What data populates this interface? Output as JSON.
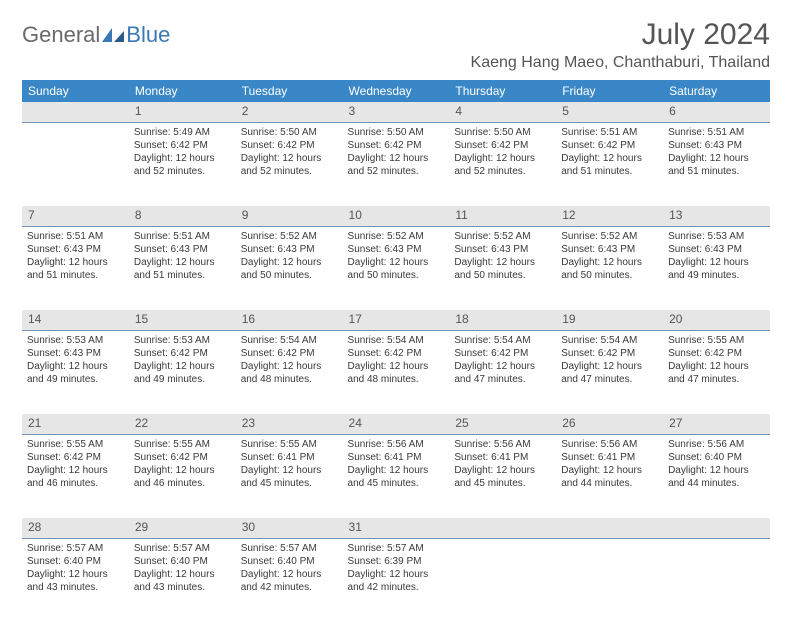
{
  "brand": {
    "part1": "General",
    "part2": "Blue"
  },
  "title": "July 2024",
  "location": "Kaeng Hang Maeo, Chanthaburi, Thailand",
  "colors": {
    "header_bg": "#3a87c7",
    "header_text": "#ffffff",
    "daynum_bg": "#e6e6e6",
    "daynum_border": "#6f93b8",
    "body_text": "#3a3a3a",
    "brand_gray": "#6a6a6a",
    "brand_blue": "#3a78b5"
  },
  "weekdays": [
    "Sunday",
    "Monday",
    "Tuesday",
    "Wednesday",
    "Thursday",
    "Friday",
    "Saturday"
  ],
  "weeks": [
    [
      null,
      {
        "n": "1",
        "sr": "5:49 AM",
        "ss": "6:42 PM",
        "dl": "12 hours and 52 minutes."
      },
      {
        "n": "2",
        "sr": "5:50 AM",
        "ss": "6:42 PM",
        "dl": "12 hours and 52 minutes."
      },
      {
        "n": "3",
        "sr": "5:50 AM",
        "ss": "6:42 PM",
        "dl": "12 hours and 52 minutes."
      },
      {
        "n": "4",
        "sr": "5:50 AM",
        "ss": "6:42 PM",
        "dl": "12 hours and 52 minutes."
      },
      {
        "n": "5",
        "sr": "5:51 AM",
        "ss": "6:42 PM",
        "dl": "12 hours and 51 minutes."
      },
      {
        "n": "6",
        "sr": "5:51 AM",
        "ss": "6:43 PM",
        "dl": "12 hours and 51 minutes."
      }
    ],
    [
      {
        "n": "7",
        "sr": "5:51 AM",
        "ss": "6:43 PM",
        "dl": "12 hours and 51 minutes."
      },
      {
        "n": "8",
        "sr": "5:51 AM",
        "ss": "6:43 PM",
        "dl": "12 hours and 51 minutes."
      },
      {
        "n": "9",
        "sr": "5:52 AM",
        "ss": "6:43 PM",
        "dl": "12 hours and 50 minutes."
      },
      {
        "n": "10",
        "sr": "5:52 AM",
        "ss": "6:43 PM",
        "dl": "12 hours and 50 minutes."
      },
      {
        "n": "11",
        "sr": "5:52 AM",
        "ss": "6:43 PM",
        "dl": "12 hours and 50 minutes."
      },
      {
        "n": "12",
        "sr": "5:52 AM",
        "ss": "6:43 PM",
        "dl": "12 hours and 50 minutes."
      },
      {
        "n": "13",
        "sr": "5:53 AM",
        "ss": "6:43 PM",
        "dl": "12 hours and 49 minutes."
      }
    ],
    [
      {
        "n": "14",
        "sr": "5:53 AM",
        "ss": "6:43 PM",
        "dl": "12 hours and 49 minutes."
      },
      {
        "n": "15",
        "sr": "5:53 AM",
        "ss": "6:42 PM",
        "dl": "12 hours and 49 minutes."
      },
      {
        "n": "16",
        "sr": "5:54 AM",
        "ss": "6:42 PM",
        "dl": "12 hours and 48 minutes."
      },
      {
        "n": "17",
        "sr": "5:54 AM",
        "ss": "6:42 PM",
        "dl": "12 hours and 48 minutes."
      },
      {
        "n": "18",
        "sr": "5:54 AM",
        "ss": "6:42 PM",
        "dl": "12 hours and 47 minutes."
      },
      {
        "n": "19",
        "sr": "5:54 AM",
        "ss": "6:42 PM",
        "dl": "12 hours and 47 minutes."
      },
      {
        "n": "20",
        "sr": "5:55 AM",
        "ss": "6:42 PM",
        "dl": "12 hours and 47 minutes."
      }
    ],
    [
      {
        "n": "21",
        "sr": "5:55 AM",
        "ss": "6:42 PM",
        "dl": "12 hours and 46 minutes."
      },
      {
        "n": "22",
        "sr": "5:55 AM",
        "ss": "6:42 PM",
        "dl": "12 hours and 46 minutes."
      },
      {
        "n": "23",
        "sr": "5:55 AM",
        "ss": "6:41 PM",
        "dl": "12 hours and 45 minutes."
      },
      {
        "n": "24",
        "sr": "5:56 AM",
        "ss": "6:41 PM",
        "dl": "12 hours and 45 minutes."
      },
      {
        "n": "25",
        "sr": "5:56 AM",
        "ss": "6:41 PM",
        "dl": "12 hours and 45 minutes."
      },
      {
        "n": "26",
        "sr": "5:56 AM",
        "ss": "6:41 PM",
        "dl": "12 hours and 44 minutes."
      },
      {
        "n": "27",
        "sr": "5:56 AM",
        "ss": "6:40 PM",
        "dl": "12 hours and 44 minutes."
      }
    ],
    [
      {
        "n": "28",
        "sr": "5:57 AM",
        "ss": "6:40 PM",
        "dl": "12 hours and 43 minutes."
      },
      {
        "n": "29",
        "sr": "5:57 AM",
        "ss": "6:40 PM",
        "dl": "12 hours and 43 minutes."
      },
      {
        "n": "30",
        "sr": "5:57 AM",
        "ss": "6:40 PM",
        "dl": "12 hours and 42 minutes."
      },
      {
        "n": "31",
        "sr": "5:57 AM",
        "ss": "6:39 PM",
        "dl": "12 hours and 42 minutes."
      },
      null,
      null,
      null
    ]
  ],
  "labels": {
    "sunrise": "Sunrise: ",
    "sunset": "Sunset: ",
    "daylight": "Daylight: "
  }
}
